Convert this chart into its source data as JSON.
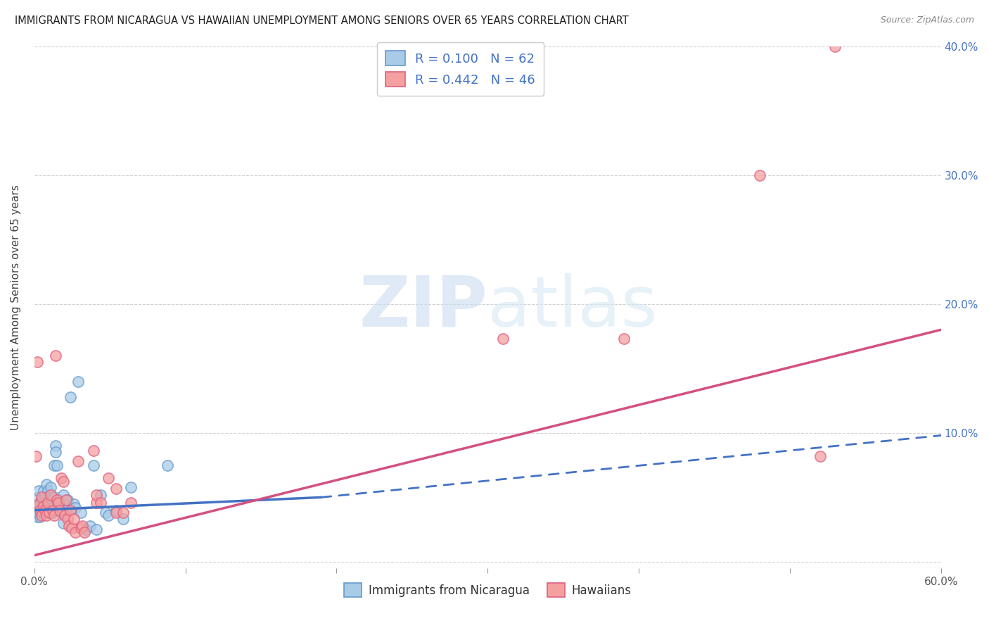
{
  "title": "IMMIGRANTS FROM NICARAGUA VS HAWAIIAN UNEMPLOYMENT AMONG SENIORS OVER 65 YEARS CORRELATION CHART",
  "source": "Source: ZipAtlas.com",
  "ylabel": "Unemployment Among Seniors over 65 years",
  "xlim": [
    0.0,
    0.6
  ],
  "ylim": [
    -0.005,
    0.145
  ],
  "xtick_labels": [
    "0.0%",
    "",
    "",
    "",
    "",
    "",
    "60.0%"
  ],
  "xtick_vals": [
    0.0,
    0.1,
    0.2,
    0.3,
    0.4,
    0.5,
    0.6
  ],
  "ytick_labels_right": [
    "",
    "10.0%",
    "20.0%",
    "30.0%",
    "40.0%"
  ],
  "ytick_vals": [
    0.0,
    0.1,
    0.2,
    0.3,
    0.4
  ],
  "legend_label1": "Immigrants from Nicaragua",
  "legend_label2": "Hawaiians",
  "r1": "0.100",
  "n1": "62",
  "r2": "0.442",
  "n2": "46",
  "color1": "#a8cce8",
  "color2": "#f4a0a0",
  "edge_color1": "#6699cc",
  "edge_color2": "#e06080",
  "line_color1_solid": "#4472c4",
  "line_color1_dash": "#4472c4",
  "line_color2": "#d45080",
  "watermark_zip": "ZIP",
  "watermark_atlas": "atlas",
  "background_color": "#ffffff",
  "blue_scatter": [
    [
      0.001,
      0.042
    ],
    [
      0.001,
      0.038
    ],
    [
      0.002,
      0.04
    ],
    [
      0.002,
      0.035
    ],
    [
      0.002,
      0.045
    ],
    [
      0.003,
      0.043
    ],
    [
      0.003,
      0.038
    ],
    [
      0.003,
      0.05
    ],
    [
      0.003,
      0.055
    ],
    [
      0.004,
      0.045
    ],
    [
      0.004,
      0.04
    ],
    [
      0.004,
      0.035
    ],
    [
      0.005,
      0.048
    ],
    [
      0.005,
      0.042
    ],
    [
      0.005,
      0.038
    ],
    [
      0.006,
      0.055
    ],
    [
      0.006,
      0.043
    ],
    [
      0.006,
      0.04
    ],
    [
      0.007,
      0.05
    ],
    [
      0.007,
      0.045
    ],
    [
      0.007,
      0.038
    ],
    [
      0.008,
      0.06
    ],
    [
      0.008,
      0.042
    ],
    [
      0.009,
      0.055
    ],
    [
      0.009,
      0.05
    ],
    [
      0.009,
      0.042
    ],
    [
      0.01,
      0.048
    ],
    [
      0.01,
      0.038
    ],
    [
      0.011,
      0.058
    ],
    [
      0.011,
      0.045
    ],
    [
      0.012,
      0.042
    ],
    [
      0.012,
      0.038
    ],
    [
      0.013,
      0.05
    ],
    [
      0.013,
      0.075
    ],
    [
      0.014,
      0.09
    ],
    [
      0.014,
      0.085
    ],
    [
      0.015,
      0.075
    ],
    [
      0.015,
      0.04
    ],
    [
      0.016,
      0.048
    ],
    [
      0.017,
      0.042
    ],
    [
      0.018,
      0.038
    ],
    [
      0.019,
      0.052
    ],
    [
      0.019,
      0.03
    ],
    [
      0.02,
      0.045
    ],
    [
      0.021,
      0.04
    ],
    [
      0.022,
      0.048
    ],
    [
      0.024,
      0.128
    ],
    [
      0.026,
      0.045
    ],
    [
      0.027,
      0.042
    ],
    [
      0.029,
      0.14
    ],
    [
      0.031,
      0.038
    ],
    [
      0.034,
      0.025
    ],
    [
      0.037,
      0.028
    ],
    [
      0.039,
      0.075
    ],
    [
      0.041,
      0.025
    ],
    [
      0.044,
      0.052
    ],
    [
      0.047,
      0.038
    ],
    [
      0.049,
      0.036
    ],
    [
      0.054,
      0.04
    ],
    [
      0.059,
      0.033
    ],
    [
      0.064,
      0.058
    ],
    [
      0.088,
      0.075
    ]
  ],
  "pink_scatter": [
    [
      0.001,
      0.082
    ],
    [
      0.002,
      0.155
    ],
    [
      0.003,
      0.045
    ],
    [
      0.004,
      0.04
    ],
    [
      0.005,
      0.036
    ],
    [
      0.005,
      0.05
    ],
    [
      0.006,
      0.043
    ],
    [
      0.007,
      0.04
    ],
    [
      0.008,
      0.036
    ],
    [
      0.009,
      0.046
    ],
    [
      0.01,
      0.038
    ],
    [
      0.011,
      0.052
    ],
    [
      0.012,
      0.04
    ],
    [
      0.013,
      0.036
    ],
    [
      0.014,
      0.16
    ],
    [
      0.015,
      0.048
    ],
    [
      0.016,
      0.046
    ],
    [
      0.017,
      0.04
    ],
    [
      0.018,
      0.065
    ],
    [
      0.019,
      0.062
    ],
    [
      0.02,
      0.036
    ],
    [
      0.021,
      0.048
    ],
    [
      0.022,
      0.033
    ],
    [
      0.023,
      0.028
    ],
    [
      0.024,
      0.04
    ],
    [
      0.025,
      0.026
    ],
    [
      0.026,
      0.033
    ],
    [
      0.027,
      0.023
    ],
    [
      0.029,
      0.078
    ],
    [
      0.031,
      0.026
    ],
    [
      0.032,
      0.028
    ],
    [
      0.033,
      0.023
    ],
    [
      0.039,
      0.086
    ],
    [
      0.041,
      0.046
    ],
    [
      0.041,
      0.052
    ],
    [
      0.044,
      0.046
    ],
    [
      0.049,
      0.065
    ],
    [
      0.054,
      0.057
    ],
    [
      0.054,
      0.038
    ],
    [
      0.059,
      0.038
    ],
    [
      0.064,
      0.046
    ],
    [
      0.31,
      0.173
    ],
    [
      0.39,
      0.173
    ],
    [
      0.48,
      0.3
    ],
    [
      0.52,
      0.082
    ],
    [
      0.53,
      0.4
    ]
  ],
  "blue_solid_line": [
    [
      0.0,
      0.04
    ],
    [
      0.19,
      0.05
    ]
  ],
  "blue_dash_line": [
    [
      0.19,
      0.05
    ],
    [
      0.6,
      0.098
    ]
  ],
  "pink_line": [
    [
      0.0,
      0.005
    ],
    [
      0.6,
      0.18
    ]
  ]
}
